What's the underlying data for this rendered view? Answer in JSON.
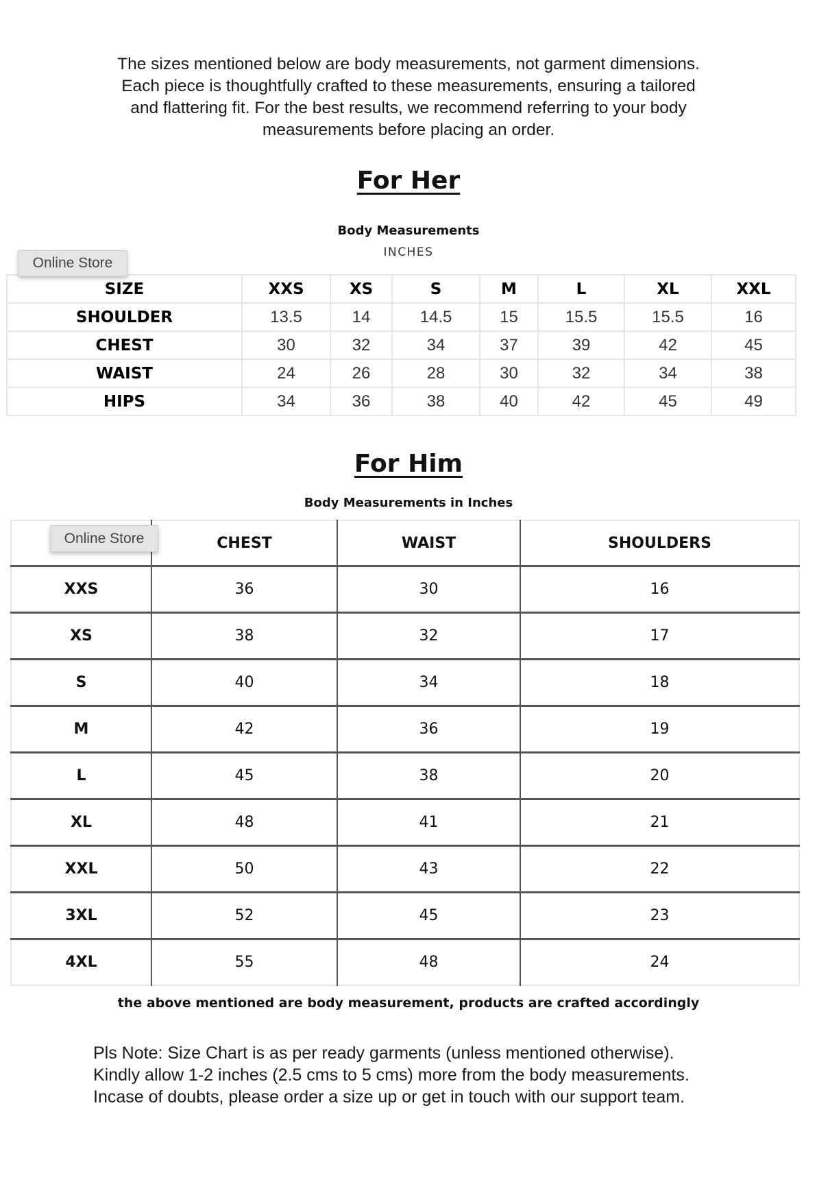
{
  "intro": [
    "The sizes mentioned below are body measurements, not garment dimensions.",
    "Each piece is thoughtfully crafted to these measurements, ensuring a tailored",
    "and flattering fit. For the best results, we recommend referring to your body",
    "measurements before placing an order."
  ],
  "her": {
    "title": "For Her",
    "subtitle": "Body Measurements",
    "unit": "INCHES",
    "tooltip": "Online Store",
    "header": [
      "SIZE",
      "XXS",
      "XS",
      "S",
      "M",
      "L",
      "XL",
      "XXL"
    ],
    "rows": [
      [
        "SHOULDER",
        "13.5",
        "14",
        "14.5",
        "15",
        "15.5",
        "15.5",
        "16"
      ],
      [
        "CHEST",
        "30",
        "32",
        "34",
        "37",
        "39",
        "42",
        "45"
      ],
      [
        "WAIST",
        "24",
        "26",
        "28",
        "30",
        "32",
        "34",
        "38"
      ],
      [
        "HIPS",
        "34",
        "36",
        "38",
        "40",
        "42",
        "45",
        "49"
      ]
    ]
  },
  "him": {
    "title": "For Him",
    "subtitle": "Body Measurements in Inches",
    "tooltip": "Online Store",
    "header": [
      "",
      "CHEST",
      "WAIST",
      "SHOULDERS"
    ],
    "rows": [
      [
        "XXS",
        "36",
        "30",
        "16"
      ],
      [
        "XS",
        "38",
        "32",
        "17"
      ],
      [
        "S",
        "40",
        "34",
        "18"
      ],
      [
        "M",
        "42",
        "36",
        "19"
      ],
      [
        "L",
        "45",
        "38",
        "20"
      ],
      [
        "XL",
        "48",
        "41",
        "21"
      ],
      [
        "XXL",
        "50",
        "43",
        "22"
      ],
      [
        "3XL",
        "52",
        "45",
        "23"
      ],
      [
        "4XL",
        "55",
        "48",
        "24"
      ]
    ]
  },
  "footer": "the above mentioned are body measurement, products are crafted accordingly",
  "note": [
    "Pls Note: Size Chart is as per ready garments (unless mentioned otherwise).",
    "Kindly allow 1-2 inches (2.5 cms to 5 cms) more from the body measurements.",
    "Incase of doubts, please order a size up or get in touch with our support team."
  ]
}
